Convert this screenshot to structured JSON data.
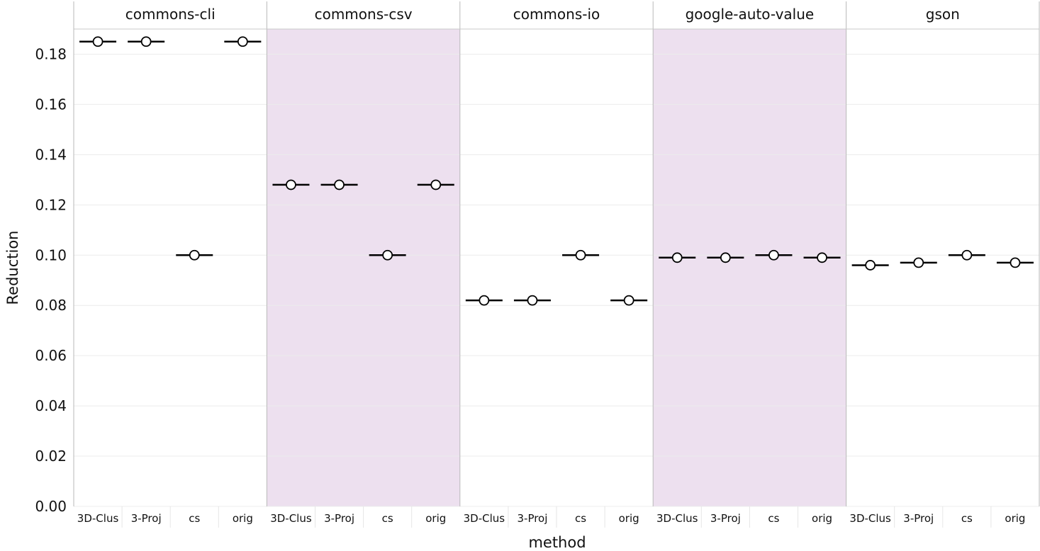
{
  "chart_data": {
    "type": "scatter",
    "ylabel": "Reduction",
    "xlabel": "method",
    "ylim": [
      0,
      0.19
    ],
    "yticks": [
      "0.00",
      "0.02",
      "0.04",
      "0.06",
      "0.08",
      "0.10",
      "0.12",
      "0.14",
      "0.16",
      "0.18"
    ],
    "grid": true,
    "categories": [
      "3D-Clus",
      "3-Proj",
      "cs",
      "orig"
    ],
    "panel_colors": [
      "#ffffff",
      "#ede0ef"
    ],
    "panels": [
      {
        "name": "commons-cli",
        "values": [
          0.185,
          0.185,
          0.1,
          0.185
        ]
      },
      {
        "name": "commons-csv",
        "values": [
          0.128,
          0.128,
          0.1,
          0.128
        ]
      },
      {
        "name": "commons-io",
        "values": [
          0.082,
          0.082,
          0.1,
          0.082
        ]
      },
      {
        "name": "google-auto-value",
        "values": [
          0.099,
          0.099,
          0.1,
          0.099
        ]
      },
      {
        "name": "gson",
        "values": [
          0.096,
          0.097,
          0.1,
          0.097
        ]
      }
    ]
  }
}
